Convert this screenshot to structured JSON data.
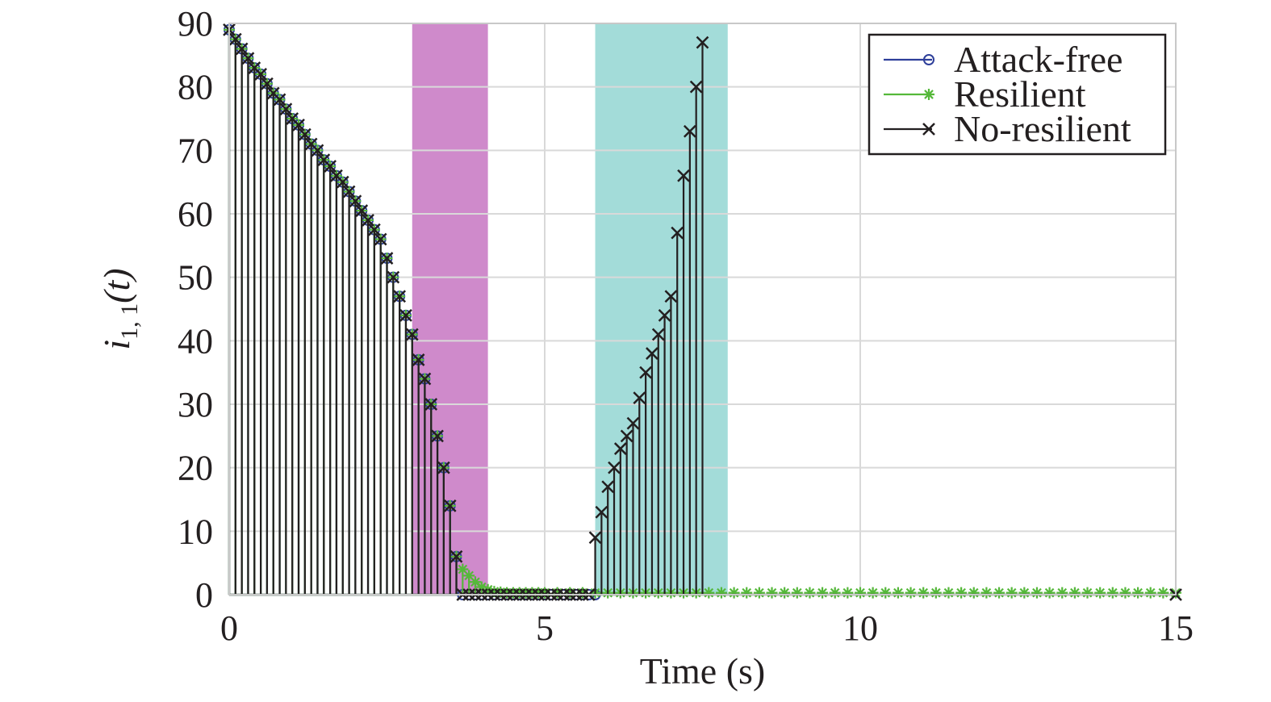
{
  "chart_data": {
    "type": "line",
    "xlabel": "Time (s)",
    "ylabel": {
      "base": "i",
      "sub": "1, 1",
      "arg": "(t)"
    },
    "xlim": [
      0,
      15
    ],
    "ylim": [
      0,
      90
    ],
    "xticks": [
      0,
      5,
      10,
      15
    ],
    "yticks": [
      0,
      10,
      20,
      30,
      40,
      50,
      60,
      70,
      80,
      90
    ],
    "grid": true,
    "legend_position": "top-right",
    "shaded_regions": [
      {
        "x0": 2.9,
        "x1": 4.1,
        "color": "#cf8acb"
      },
      {
        "x0": 5.8,
        "x1": 7.9,
        "color": "#a3dcd9"
      }
    ],
    "series": [
      {
        "name": "Attack-free",
        "color": "#2e3f9a",
        "marker": "circle",
        "style": "stem",
        "x": [
          0.0,
          0.1,
          0.2,
          0.3,
          0.4,
          0.5,
          0.6,
          0.7,
          0.8,
          0.9,
          1.0,
          1.1,
          1.2,
          1.3,
          1.4,
          1.5,
          1.6,
          1.7,
          1.8,
          1.9,
          2.0,
          2.1,
          2.2,
          2.3,
          2.4,
          2.5,
          2.6,
          2.7,
          2.8,
          2.9,
          3.0,
          3.1,
          3.2,
          3.3,
          3.4,
          3.5,
          3.6,
          3.7,
          3.8,
          3.9,
          4.0,
          4.1,
          4.2,
          4.3,
          4.4,
          4.5,
          4.6,
          4.7,
          4.8,
          4.9,
          5.0,
          5.1,
          5.2,
          5.3,
          5.4,
          5.5,
          5.6,
          5.7,
          5.8
        ],
        "y": [
          89,
          87.5,
          86,
          84.5,
          83,
          82,
          80.5,
          79,
          78,
          76.5,
          75,
          74,
          72.5,
          71,
          70,
          68.5,
          67.5,
          66,
          65,
          63.5,
          62,
          60.5,
          59,
          57.5,
          56,
          53,
          50,
          47,
          44,
          41,
          37,
          34,
          30,
          25,
          20,
          14,
          6,
          0,
          0,
          0,
          0,
          0,
          0,
          0,
          0,
          0,
          0,
          0,
          0,
          0,
          0,
          0,
          0,
          0,
          0,
          0,
          0,
          0,
          0
        ]
      },
      {
        "name": "Resilient",
        "color": "#55b83a",
        "marker": "asterisk",
        "style": "stem",
        "x": [
          0.0,
          0.1,
          0.2,
          0.3,
          0.4,
          0.5,
          0.6,
          0.7,
          0.8,
          0.9,
          1.0,
          1.1,
          1.2,
          1.3,
          1.4,
          1.5,
          1.6,
          1.7,
          1.8,
          1.9,
          2.0,
          2.1,
          2.2,
          2.3,
          2.4,
          2.5,
          2.6,
          2.7,
          2.8,
          2.9,
          3.0,
          3.1,
          3.2,
          3.3,
          3.4,
          3.5,
          3.6,
          3.7,
          3.8,
          3.9,
          4.0,
          4.1,
          4.2,
          4.3,
          4.4,
          4.5,
          4.6,
          4.7,
          4.8,
          4.9,
          5.0,
          5.2,
          5.4,
          5.6,
          5.8,
          6.0,
          6.2,
          6.4,
          6.6,
          6.8,
          7.0,
          7.2,
          7.4,
          7.6,
          7.8,
          8.0,
          8.2,
          8.4,
          8.6,
          8.8,
          9.0,
          9.2,
          9.4,
          9.6,
          9.8,
          10.0,
          10.2,
          10.4,
          10.6,
          10.8,
          11.0,
          11.2,
          11.4,
          11.6,
          11.8,
          12.0,
          12.2,
          12.4,
          12.6,
          12.8,
          13.0,
          13.2,
          13.4,
          13.6,
          13.8,
          14.0,
          14.2,
          14.4,
          14.6,
          14.8,
          15.0
        ],
        "y": [
          89,
          87.5,
          86,
          84.5,
          83,
          82,
          80.5,
          79,
          78,
          76.5,
          75,
          74,
          72.5,
          71,
          70,
          68.5,
          67.5,
          66,
          65,
          63.5,
          62,
          60.5,
          59,
          57.5,
          56,
          53,
          50,
          47,
          44,
          41,
          37,
          34,
          30,
          25,
          20,
          14,
          6,
          4,
          3,
          2,
          1.2,
          0.8,
          0.5,
          0.4,
          0.3,
          0.3,
          0.3,
          0.3,
          0.3,
          0.3,
          0.3,
          0.3,
          0.3,
          0.3,
          0.3,
          0.3,
          0.3,
          0.3,
          0.3,
          0.3,
          0.3,
          0.3,
          0.3,
          0.3,
          0.3,
          0.3,
          0.3,
          0.3,
          0.3,
          0.3,
          0.3,
          0.3,
          0.3,
          0.3,
          0.3,
          0.3,
          0.3,
          0.3,
          0.3,
          0.3,
          0.3,
          0.3,
          0.3,
          0.3,
          0.3,
          0.3,
          0.3,
          0.3,
          0.3,
          0.3,
          0.3,
          0.3,
          0.3,
          0.3,
          0.3,
          0.3,
          0.3,
          0.3,
          0.3,
          0.3,
          0.3
        ]
      },
      {
        "name": "No-resilient",
        "color": "#231f20",
        "marker": "x",
        "style": "stem",
        "x": [
          0.0,
          0.1,
          0.2,
          0.3,
          0.4,
          0.5,
          0.6,
          0.7,
          0.8,
          0.9,
          1.0,
          1.1,
          1.2,
          1.3,
          1.4,
          1.5,
          1.6,
          1.7,
          1.8,
          1.9,
          2.0,
          2.1,
          2.2,
          2.3,
          2.4,
          2.5,
          2.6,
          2.7,
          2.8,
          2.9,
          3.0,
          3.1,
          3.2,
          3.3,
          3.4,
          3.5,
          3.6,
          3.7,
          3.8,
          3.9,
          4.0,
          4.1,
          4.2,
          4.3,
          4.4,
          4.5,
          4.6,
          4.7,
          4.8,
          4.9,
          5.0,
          5.1,
          5.2,
          5.3,
          5.4,
          5.5,
          5.6,
          5.7,
          5.8,
          5.9,
          6.0,
          6.1,
          6.2,
          6.3,
          6.4,
          6.5,
          6.6,
          6.7,
          6.8,
          6.9,
          7.0,
          7.1,
          7.2,
          7.3,
          7.4,
          7.5,
          15.0
        ],
        "y": [
          89,
          87.5,
          86,
          84.5,
          83,
          82,
          80.5,
          79,
          78,
          76.5,
          75,
          74,
          72.5,
          71,
          70,
          68.5,
          67.5,
          66,
          65,
          63.5,
          62,
          60.5,
          59,
          57.5,
          56,
          53,
          50,
          47,
          44,
          41,
          37,
          34,
          30,
          25,
          20,
          14,
          6,
          0,
          0,
          0,
          0,
          0,
          0,
          0,
          0,
          0,
          0,
          0,
          0,
          0,
          0,
          0,
          0,
          0,
          0,
          0,
          0,
          0,
          9,
          13,
          17,
          20,
          23,
          25,
          27,
          31,
          35,
          38,
          41,
          44,
          47,
          57,
          66,
          73,
          80,
          87,
          0
        ]
      }
    ]
  }
}
